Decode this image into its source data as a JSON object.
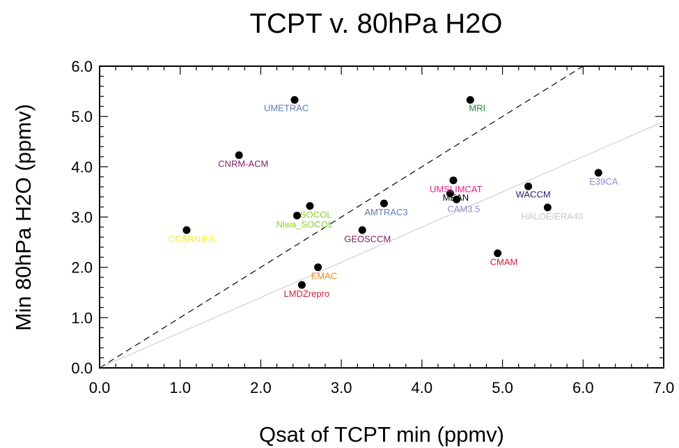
{
  "chart_data": {
    "type": "scatter",
    "title": "TCPT v. 80hPa H2O",
    "xlabel": "Qsat of TCPT min (ppmv)",
    "ylabel": "Min 80hPa H2O (ppmv)",
    "xlim": [
      0.0,
      7.0
    ],
    "ylim": [
      0.0,
      6.0
    ],
    "xticks": [
      "0.0",
      "1.0",
      "2.0",
      "3.0",
      "4.0",
      "5.0",
      "6.0",
      "7.0"
    ],
    "yticks": [
      "0.0",
      "1.0",
      "2.0",
      "3.0",
      "4.0",
      "5.0",
      "6.0"
    ],
    "grid": false,
    "reference_lines": [
      {
        "style": "dashed",
        "color": "#000000",
        "slope": 1.0
      },
      {
        "style": "solid",
        "color": "#c8c8c8",
        "slope": 0.7
      }
    ],
    "points": [
      {
        "label": "UMETRAC",
        "x": 2.42,
        "y": 5.33,
        "color": "#5b7ab5",
        "dx": -44,
        "dy": 16
      },
      {
        "label": "MRI",
        "x": 4.6,
        "y": 5.33,
        "color": "#1e8a3a",
        "dx": -2,
        "dy": 16
      },
      {
        "label": "CNRM-ACM",
        "x": 1.73,
        "y": 4.23,
        "color": "#7a1e5e",
        "dx": -30,
        "dy": 17
      },
      {
        "label": "E39CA",
        "x": 6.19,
        "y": 3.88,
        "color": "#8a8ac8",
        "dx": -13,
        "dy": 17
      },
      {
        "label": "UMSLIMCAT",
        "x": 4.39,
        "y": 3.73,
        "color": "#e0208a",
        "dx": -34,
        "dy": 17
      },
      {
        "label": "WACCM",
        "x": 5.32,
        "y": 3.61,
        "color": "#2a1a6a",
        "dx": -18,
        "dy": 16
      },
      {
        "label": "MEAN",
        "x": 4.43,
        "y": 3.35,
        "color": "#000000",
        "dx": -20,
        "dy": 2
      },
      {
        "label": "CAM3.5",
        "x": 4.35,
        "y": 3.47,
        "color": "#8a8ac8",
        "dx": -4,
        "dy": 27
      },
      {
        "label": "AMTRAC3",
        "x": 3.53,
        "y": 3.27,
        "color": "#5b7ab5",
        "dx": -28,
        "dy": 17
      },
      {
        "label": "SOCOL",
        "x": 2.61,
        "y": 3.22,
        "color": "#8ad02a",
        "dx": -14,
        "dy": 17
      },
      {
        "label": "Niwa_SOCOL",
        "x": 2.45,
        "y": 3.03,
        "color": "#8ad02a",
        "dx": -30,
        "dy": 17
      },
      {
        "label": "HALOE/ERA40",
        "x": 5.56,
        "y": 3.19,
        "color": "#c8c8c8",
        "dx": -38,
        "dy": 17
      },
      {
        "label": "GEOSCCM",
        "x": 3.26,
        "y": 2.74,
        "color": "#7a1e5e",
        "dx": -26,
        "dy": 17
      },
      {
        "label": "CCSRNIES",
        "x": 1.08,
        "y": 2.74,
        "color": "#f0f020",
        "dx": -26,
        "dy": 17
      },
      {
        "label": "CMAM",
        "x": 4.94,
        "y": 2.28,
        "color": "#d01e3a",
        "dx": -11,
        "dy": 17
      },
      {
        "label": "EMAC",
        "x": 2.71,
        "y": 2.0,
        "color": "#f08a1e",
        "dx": -10,
        "dy": 17
      },
      {
        "label": "LMDZrepro",
        "x": 2.51,
        "y": 1.65,
        "color": "#d01e3a",
        "dx": -26,
        "dy": 17
      }
    ]
  }
}
